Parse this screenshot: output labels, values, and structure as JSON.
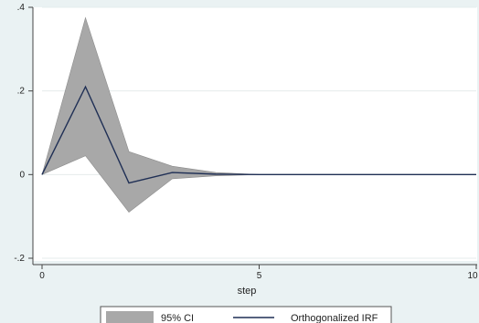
{
  "chart_data": {
    "type": "area",
    "xlabel": "step",
    "ylabel": "",
    "xlim": [
      0,
      10
    ],
    "ylim": [
      -0.2,
      0.4
    ],
    "x_ticks": [
      0,
      5,
      10
    ],
    "x_tick_labels": [
      "0",
      "5",
      "10"
    ],
    "y_ticks": [
      -0.2,
      0,
      0.2,
      0.4
    ],
    "y_tick_labels": [
      "-.2",
      "0",
      ".2",
      ".4"
    ],
    "grid": true,
    "legend_position": "bottom",
    "colors": {
      "ci_fill": "#a8a8a8",
      "ci_edge": "#8c8c8c",
      "irf_line": "#1f2f55",
      "grid": "#e4ecec",
      "plot_bg": "#ffffff"
    },
    "x": [
      0,
      1,
      2,
      3,
      4,
      5,
      6,
      7,
      8,
      9,
      10
    ],
    "series": [
      {
        "name": "95% CI",
        "kind": "band",
        "upper": [
          0,
          0.375,
          0.055,
          0.02,
          0.005,
          0,
          0,
          0,
          0,
          0,
          0
        ],
        "lower": [
          0,
          0.045,
          -0.09,
          -0.01,
          -0.003,
          0,
          0,
          0,
          0,
          0,
          0
        ]
      },
      {
        "name": "Orthogonalized IRF",
        "kind": "line",
        "values": [
          0,
          0.21,
          -0.02,
          0.005,
          0.001,
          0,
          0,
          0,
          0,
          0,
          0
        ]
      }
    ]
  }
}
